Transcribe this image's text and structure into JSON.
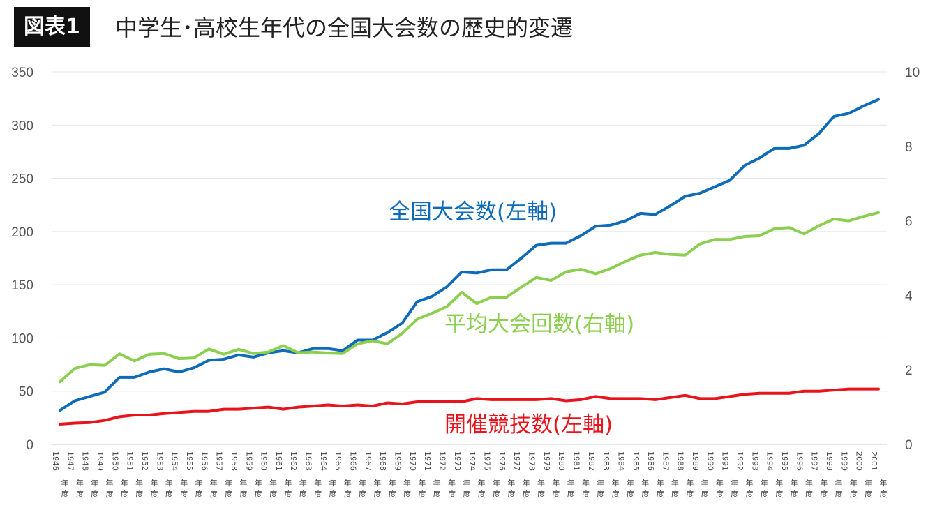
{
  "header": {
    "badge": "図表1",
    "title": "中学生･高校生年代の全国大会数の歴史的変遷"
  },
  "chart_data": {
    "type": "line",
    "title": "中学生･高校生年代の全国大会数の歴史的変遷",
    "grid": true,
    "y_left": {
      "range": [
        0,
        350
      ],
      "ticks": [
        0,
        50,
        100,
        150,
        200,
        250,
        300,
        350
      ]
    },
    "y_right": {
      "range": [
        0,
        10
      ],
      "ticks": [
        0,
        2,
        4,
        6,
        8,
        10
      ]
    },
    "categories": [
      "1946年度",
      "1947年度",
      "1948年度",
      "1949年度",
      "1950年度",
      "1951年度",
      "1952年度",
      "1953年度",
      "1954年度",
      "1955年度",
      "1956年度",
      "1957年度",
      "1958年度",
      "1959年度",
      "1960年度",
      "1961年度",
      "1962年度",
      "1963年度",
      "1964年度",
      "1965年度",
      "1966年度",
      "1967年度",
      "1968年度",
      "1969年度",
      "1970年度",
      "1971年度",
      "1972年度",
      "1973年度",
      "1974年度",
      "1975年度",
      "1976年度",
      "1977年度",
      "1978年度",
      "1979年度",
      "1980年度",
      "1981年度",
      "1982年度",
      "1983年度",
      "1984年度",
      "1985年度",
      "1986年度",
      "1987年度",
      "1988年度",
      "1989年度",
      "1990年度",
      "1991年度",
      "1992年度",
      "1993年度",
      "1994年度",
      "1995年度",
      "1996年度",
      "1997年度",
      "1998年度",
      "1999年度",
      "2000年度",
      "2001年度"
    ],
    "series": [
      {
        "name": "全国大会数(左軸)",
        "axis": "left",
        "color": "#0E6BB8",
        "values": [
          32,
          41,
          45,
          49,
          63,
          63,
          68,
          71,
          68,
          72,
          79,
          80,
          84,
          82,
          86,
          88,
          86,
          90,
          90,
          88,
          98,
          98,
          105,
          114,
          134,
          139,
          148,
          162,
          161,
          164,
          164,
          175,
          187,
          189,
          189,
          196,
          205,
          206,
          210,
          217,
          216,
          224,
          233,
          236,
          242,
          248,
          262,
          269,
          278,
          278,
          281,
          292,
          308,
          311,
          318,
          324
        ]
      },
      {
        "name": "平均大会回数(右軸)",
        "axis": "right",
        "color": "#8CCF50",
        "values": [
          1.68,
          2.04,
          2.14,
          2.12,
          2.43,
          2.24,
          2.42,
          2.44,
          2.3,
          2.32,
          2.56,
          2.42,
          2.55,
          2.44,
          2.48,
          2.65,
          2.46,
          2.48,
          2.45,
          2.44,
          2.7,
          2.78,
          2.7,
          2.98,
          3.36,
          3.52,
          3.7,
          4.08,
          3.78,
          3.95,
          3.95,
          4.22,
          4.48,
          4.4,
          4.63,
          4.7,
          4.58,
          4.72,
          4.91,
          5.08,
          5.15,
          5.1,
          5.08,
          5.38,
          5.5,
          5.5,
          5.58,
          5.6,
          5.79,
          5.82,
          5.65,
          5.87,
          6.05,
          6.0,
          6.12,
          6.22
        ]
      },
      {
        "name": "開催競技数(左軸)",
        "axis": "left",
        "color": "#E8141C",
        "values": [
          19,
          20,
          20.5,
          22.5,
          26,
          27.5,
          27.5,
          29,
          30,
          31,
          31,
          33,
          33,
          34,
          35,
          33,
          35,
          36,
          37,
          36,
          37,
          36,
          39,
          38,
          40,
          40,
          40,
          40,
          43,
          42,
          42,
          42,
          42,
          43,
          41,
          42,
          45,
          43,
          43,
          43,
          42,
          44,
          46,
          43,
          43,
          45,
          47,
          48,
          48,
          48,
          50,
          50,
          51,
          52,
          52,
          52
        ]
      }
    ]
  }
}
